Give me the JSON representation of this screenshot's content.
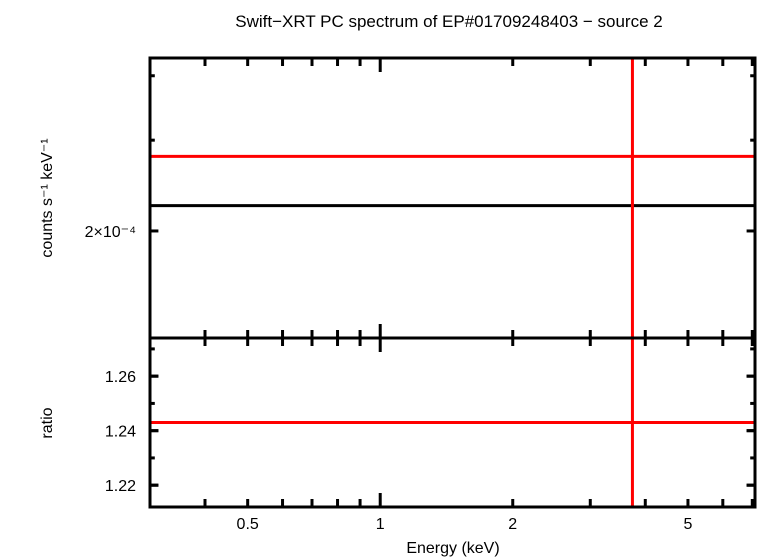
{
  "chart_data": [
    {
      "type": "line",
      "panel": "spectrum",
      "title": "Swift−XRT PC spectrum of EP#01709248403 − source 2",
      "ylabel": "counts s⁻¹ keV⁻¹",
      "xscale": "log",
      "yscale": "log",
      "xlim": [
        0.3,
        7.1
      ],
      "ylim": [
        0.000124,
        0.000433
      ],
      "ytick_labels": [
        {
          "value": 0.0002,
          "label": "2×10⁻⁴"
        }
      ],
      "y_minor_ticks": [
        0.0003,
        0.0004
      ],
      "series": [
        {
          "color": "#000000",
          "kind": "horizontal-line",
          "y": 0.000224
        },
        {
          "color": "#ff0000",
          "kind": "horizontal-line",
          "y": 0.000279
        },
        {
          "color": "#ff0000",
          "kind": "vertical-line",
          "x": 3.74
        }
      ],
      "grid": false
    },
    {
      "type": "line",
      "panel": "ratio",
      "xlabel": "Energy (keV)",
      "ylabel": "ratio",
      "xscale": "log",
      "xlim": [
        0.3,
        7.1
      ],
      "ylim": [
        1.212,
        1.274
      ],
      "xtick_labels": [
        {
          "value": 0.5,
          "label": "0.5"
        },
        {
          "value": 1,
          "label": "1"
        },
        {
          "value": 2,
          "label": "2"
        },
        {
          "value": 5,
          "label": "5"
        }
      ],
      "ytick_labels": [
        {
          "value": 1.22,
          "label": "1.22"
        },
        {
          "value": 1.24,
          "label": "1.24"
        },
        {
          "value": 1.26,
          "label": "1.26"
        }
      ],
      "series": [
        {
          "color": "#ff0000",
          "kind": "horizontal-line",
          "y": 1.243
        },
        {
          "color": "#ff0000",
          "kind": "vertical-line",
          "x": 3.74
        }
      ],
      "grid": false
    }
  ]
}
